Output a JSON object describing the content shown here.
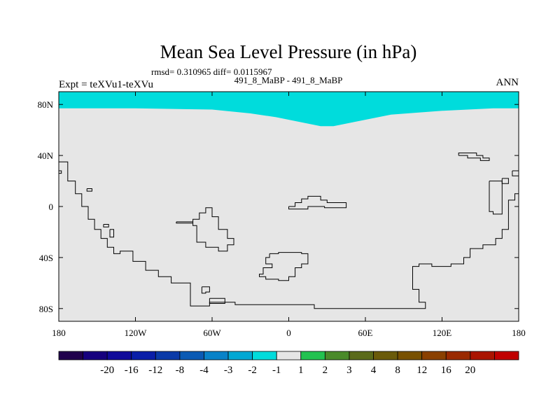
{
  "chart_data": {
    "type": "map",
    "title": "Mean Sea Level Pressure (in hPa)",
    "stats_line": "rmsd= 0.310965 diff= 0.0115967",
    "left_label": "Expt = teXVu1-teXVu",
    "center_label": "491_8_MaBP - 491_8_MaBP",
    "right_label": "ANN",
    "lon_range": [
      -180,
      180
    ],
    "lat_range": [
      -90,
      90
    ],
    "x_ticks": [
      {
        "value": -180,
        "label": "180"
      },
      {
        "value": -120,
        "label": "120W"
      },
      {
        "value": -60,
        "label": "60W"
      },
      {
        "value": 0,
        "label": "0"
      },
      {
        "value": 60,
        "label": "60E"
      },
      {
        "value": 120,
        "label": "120E"
      },
      {
        "value": 180,
        "label": "180"
      }
    ],
    "y_ticks": [
      {
        "value": 80,
        "label": "80N"
      },
      {
        "value": 40,
        "label": "40N"
      },
      {
        "value": 0,
        "label": "0"
      },
      {
        "value": -40,
        "label": "40S"
      },
      {
        "value": -80,
        "label": "80S"
      }
    ],
    "field": {
      "background_range": "-1 to 1",
      "background_color": "#e6e6e6",
      "polar_band": {
        "range": "-2 to -1",
        "color": "#00dcdc",
        "lower_boundary": [
          [
            -180,
            77
          ],
          [
            -120,
            77
          ],
          [
            -60,
            76
          ],
          [
            -30,
            73
          ],
          [
            -10,
            70
          ],
          [
            10,
            66
          ],
          [
            25,
            63
          ],
          [
            35,
            63
          ],
          [
            50,
            66
          ],
          [
            80,
            72
          ],
          [
            120,
            75
          ],
          [
            160,
            77
          ],
          [
            180,
            77
          ]
        ]
      }
    },
    "colorbar": {
      "colors": [
        "#20004c",
        "#16007e",
        "#100a9a",
        "#0a1ea8",
        "#0a3aa8",
        "#0a5ab4",
        "#0882c8",
        "#00a8d4",
        "#00dcdc",
        "#e6e6e6",
        "#23c250",
        "#4a8a2a",
        "#5a6a1a",
        "#6a5a0a",
        "#785000",
        "#8a4000",
        "#9a2a00",
        "#aa1400",
        "#c00000"
      ],
      "labels": [
        "-20",
        "-16",
        "-12",
        "-8",
        "-4",
        "-3",
        "-2",
        "-1",
        "1",
        "2",
        "3",
        "4",
        "8",
        "12",
        "16",
        "20"
      ]
    },
    "coastlines": [
      [
        [
          -180,
          35
        ],
        [
          -173,
          35
        ],
        [
          -173,
          20
        ],
        [
          -167,
          20
        ],
        [
          -167,
          10
        ],
        [
          -162,
          10
        ],
        [
          -162,
          0
        ],
        [
          -157,
          0
        ],
        [
          -157,
          -10
        ],
        [
          -152,
          -10
        ],
        [
          -152,
          -18
        ],
        [
          -147,
          -18
        ],
        [
          -147,
          -25
        ],
        [
          -142,
          -25
        ],
        [
          -142,
          -32
        ],
        [
          -137,
          -32
        ],
        [
          -137,
          -37
        ],
        [
          -132,
          -37
        ],
        [
          -132,
          -35
        ],
        [
          -122,
          -35
        ],
        [
          -122,
          -43
        ],
        [
          -112,
          -43
        ],
        [
          -112,
          -50
        ],
        [
          -102,
          -50
        ],
        [
          -102,
          -55
        ],
        [
          -92,
          -55
        ],
        [
          -92,
          -60
        ],
        [
          -77,
          -60
        ],
        [
          -77,
          -78
        ],
        [
          -62,
          -78
        ],
        [
          -62,
          -75
        ],
        [
          -42,
          -75
        ],
        [
          -42,
          -77
        ],
        [
          20,
          -77
        ],
        [
          20,
          -80
        ],
        [
          107,
          -80
        ],
        [
          107,
          -75
        ],
        [
          102,
          -75
        ],
        [
          102,
          -65
        ],
        [
          97,
          -65
        ],
        [
          97,
          -47
        ],
        [
          102,
          -47
        ],
        [
          102,
          -45
        ],
        [
          112,
          -45
        ],
        [
          112,
          -47
        ],
        [
          127,
          -47
        ],
        [
          127,
          -45
        ],
        [
          137,
          -45
        ],
        [
          137,
          -40
        ],
        [
          142,
          -40
        ],
        [
          142,
          -33
        ],
        [
          152,
          -33
        ],
        [
          152,
          -30
        ],
        [
          162,
          -30
        ],
        [
          162,
          -25
        ],
        [
          167,
          -25
        ],
        [
          167,
          -18
        ],
        [
          172,
          -18
        ],
        [
          172,
          5
        ],
        [
          177,
          5
        ],
        [
          177,
          10
        ],
        [
          180,
          10
        ]
      ],
      [
        [
          -180,
          28
        ],
        [
          -178,
          28
        ],
        [
          -178,
          26
        ],
        [
          -180,
          26
        ]
      ],
      [
        [
          -158,
          14
        ],
        [
          -154,
          14
        ],
        [
          -154,
          12
        ],
        [
          -158,
          12
        ],
        [
          -158,
          14
        ]
      ],
      [
        [
          -145,
          -14
        ],
        [
          -141,
          -14
        ],
        [
          -141,
          -16
        ],
        [
          -145,
          -16
        ],
        [
          -145,
          -14
        ]
      ],
      [
        [
          -140,
          -18
        ],
        [
          -137,
          -18
        ],
        [
          -137,
          -24
        ],
        [
          -140,
          -24
        ],
        [
          -140,
          -18
        ]
      ],
      [
        [
          -88,
          -12
        ],
        [
          -75,
          -12
        ],
        [
          -75,
          -15
        ],
        [
          -72,
          -15
        ],
        [
          -72,
          -28
        ],
        [
          -65,
          -28
        ],
        [
          -65,
          -32
        ],
        [
          -55,
          -32
        ],
        [
          -55,
          -35
        ],
        [
          -48,
          -35
        ],
        [
          -48,
          -30
        ],
        [
          -43,
          -30
        ],
        [
          -43,
          -25
        ],
        [
          -48,
          -25
        ],
        [
          -48,
          -18
        ],
        [
          -55,
          -18
        ],
        [
          -55,
          -8
        ],
        [
          -60,
          -8
        ],
        [
          -60,
          -1
        ],
        [
          -65,
          -1
        ],
        [
          -65,
          -5
        ],
        [
          -70,
          -5
        ],
        [
          -70,
          -10
        ],
        [
          -75,
          -10
        ],
        [
          -75,
          -13
        ],
        [
          -88,
          -13
        ],
        [
          -88,
          -12
        ]
      ],
      [
        [
          -68,
          -63
        ],
        [
          -62,
          -63
        ],
        [
          -62,
          -67
        ],
        [
          -65,
          -67
        ],
        [
          -65,
          -68
        ],
        [
          -68,
          -68
        ],
        [
          -68,
          -63
        ]
      ],
      [
        [
          -62,
          -72
        ],
        [
          -50,
          -72
        ],
        [
          -50,
          -76
        ],
        [
          -62,
          -76
        ],
        [
          -62,
          -72
        ]
      ],
      [
        [
          0,
          0
        ],
        [
          5,
          0
        ],
        [
          5,
          3
        ],
        [
          10,
          3
        ],
        [
          10,
          6
        ],
        [
          15,
          6
        ],
        [
          15,
          8
        ],
        [
          25,
          8
        ],
        [
          25,
          5
        ],
        [
          30,
          5
        ],
        [
          30,
          3
        ],
        [
          45,
          3
        ],
        [
          45,
          -1
        ],
        [
          28,
          -1
        ],
        [
          28,
          0
        ],
        [
          15,
          0
        ],
        [
          15,
          -2
        ],
        [
          5,
          -2
        ],
        [
          0,
          -2
        ],
        [
          0,
          0
        ]
      ],
      [
        [
          -15,
          -37
        ],
        [
          -8,
          -37
        ],
        [
          -8,
          -36
        ],
        [
          10,
          -36
        ],
        [
          10,
          -37
        ],
        [
          15,
          -37
        ],
        [
          15,
          -45
        ],
        [
          10,
          -45
        ],
        [
          10,
          -48
        ],
        [
          5,
          -48
        ],
        [
          5,
          -55
        ],
        [
          0,
          -55
        ],
        [
          0,
          -58
        ],
        [
          -8,
          -58
        ],
        [
          -8,
          -57
        ],
        [
          -18,
          -57
        ],
        [
          -18,
          -55
        ],
        [
          -23,
          -55
        ],
        [
          -23,
          -53
        ],
        [
          -20,
          -53
        ],
        [
          -20,
          -48
        ],
        [
          -13,
          -48
        ],
        [
          -13,
          -45
        ],
        [
          -18,
          -45
        ],
        [
          -18,
          -40
        ],
        [
          -15,
          -40
        ],
        [
          -15,
          -37
        ]
      ],
      [
        [
          133,
          40
        ],
        [
          133,
          42
        ],
        [
          147,
          42
        ],
        [
          147,
          40
        ],
        [
          152,
          40
        ],
        [
          152,
          38
        ],
        [
          157,
          38
        ],
        [
          157,
          36
        ],
        [
          150,
          36
        ],
        [
          150,
          38
        ],
        [
          140,
          38
        ],
        [
          140,
          40
        ],
        [
          133,
          40
        ]
      ],
      [
        [
          157,
          20
        ],
        [
          167,
          20
        ],
        [
          167,
          -6
        ],
        [
          160,
          -6
        ],
        [
          160,
          -4
        ],
        [
          157,
          -4
        ],
        [
          157,
          20
        ]
      ],
      [
        [
          167,
          22
        ],
        [
          172,
          22
        ],
        [
          172,
          18
        ],
        [
          167,
          18
        ],
        [
          167,
          22
        ]
      ],
      [
        [
          175,
          28
        ],
        [
          180,
          28
        ],
        [
          180,
          24
        ],
        [
          175,
          24
        ],
        [
          175,
          28
        ]
      ]
    ]
  }
}
